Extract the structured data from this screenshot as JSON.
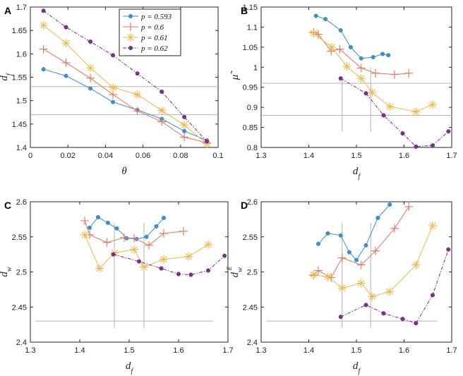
{
  "colors": {
    "p0593": "#3a8fd0",
    "p06": "#e8745a",
    "p061": "#f2b84b",
    "p062": "#7a2f8f",
    "ref": "#b4b4b4"
  },
  "legend": [
    {
      "label": "p = 0.593",
      "marker": "dot",
      "color": "#3a8fd0",
      "dash": ""
    },
    {
      "label": "p = 0.6",
      "marker": "plus",
      "color": "#e8745a",
      "dash": ""
    },
    {
      "label": "p = 0.61",
      "marker": "star",
      "color": "#f2b84b",
      "dash": ""
    },
    {
      "label": "p = 0.62",
      "marker": "dot",
      "color": "#7a2f8f",
      "dash": "5,2,1.5,2"
    }
  ],
  "chart_data": [
    {
      "id": "A",
      "panel_label": "A",
      "type": "line",
      "xlabel": "θ",
      "ylabel": "d_f",
      "xlim": [
        0,
        0.1
      ],
      "ylim": [
        1.4,
        1.7
      ],
      "xticks": [
        0,
        0.02,
        0.04,
        0.06,
        0.08,
        0.1
      ],
      "xticklabels": [
        "0",
        "0.02",
        "0.04",
        "0.06",
        "0.08",
        "0.1"
      ],
      "yticks": [
        1.4,
        1.45,
        1.5,
        1.55,
        1.6,
        1.65,
        1.7
      ],
      "yticklabels": [
        "1.4",
        "1.45",
        "1.5",
        "1.55",
        "1.6",
        "1.65",
        "1.7"
      ],
      "ref_lines": [
        {
          "type": "h",
          "value": 1.53
        },
        {
          "type": "h",
          "value": 1.47
        }
      ],
      "series": [
        {
          "name": "p = 0.593",
          "x": [
            0.007,
            0.019,
            0.032,
            0.044,
            0.057,
            0.07,
            0.082,
            0.094
          ],
          "y": [
            1.567,
            1.553,
            1.526,
            1.497,
            1.48,
            1.461,
            1.435,
            1.415
          ]
        },
        {
          "name": "p = 0.6",
          "x": [
            0.007,
            0.019,
            0.032,
            0.044,
            0.057,
            0.07,
            0.082,
            0.094
          ],
          "y": [
            1.61,
            1.581,
            1.548,
            1.513,
            1.478,
            1.455,
            1.422,
            1.41
          ]
        },
        {
          "name": "p = 0.61",
          "x": [
            0.007,
            0.019,
            0.032,
            0.044,
            0.057,
            0.07,
            0.082,
            0.094
          ],
          "y": [
            1.661,
            1.623,
            1.57,
            1.528,
            1.513,
            1.479,
            1.448,
            1.408
          ]
        },
        {
          "name": "p = 0.62",
          "x": [
            0.007,
            0.019,
            0.032,
            0.044,
            0.057,
            0.07,
            0.082,
            0.094
          ],
          "y": [
            1.692,
            1.657,
            1.626,
            1.597,
            1.558,
            1.519,
            1.465,
            1.413
          ]
        }
      ]
    },
    {
      "id": "B",
      "panel_label": "B",
      "type": "line",
      "xlabel": "d_f",
      "ylabel": "μ̃",
      "xlim": [
        1.3,
        1.7
      ],
      "ylim": [
        0.8,
        1.15
      ],
      "xticks": [
        1.3,
        1.4,
        1.5,
        1.6,
        1.7
      ],
      "xticklabels": [
        "1.3",
        "1.4",
        "1.5",
        "1.6",
        "1.7"
      ],
      "yticks": [
        0.8,
        0.85,
        0.9,
        0.95,
        1,
        1.05,
        1.1,
        1.15
      ],
      "yticklabels": [
        "0.8",
        "0.85",
        "0.9",
        "0.95",
        "1",
        "1.05",
        "1.1",
        "1.15"
      ],
      "ref_lines": [
        {
          "type": "h",
          "value": 0.96,
          "from": 1.3,
          "to": 1.7
        },
        {
          "type": "h",
          "value": 0.88,
          "from": 1.3,
          "to": 1.7
        },
        {
          "type": "v",
          "value": 1.47,
          "from": 0.84,
          "to": 0.975
        },
        {
          "type": "v",
          "value": 1.53,
          "from": 0.84,
          "to": 1.0
        }
      ],
      "series": [
        {
          "name": "p = 0.593",
          "x": [
            1.415,
            1.435,
            1.467,
            1.488,
            1.51,
            1.535,
            1.555,
            1.567
          ],
          "y": [
            1.128,
            1.12,
            1.092,
            1.05,
            1.022,
            1.025,
            1.033,
            1.03
          ]
        },
        {
          "name": "p = 0.6",
          "x": [
            1.41,
            1.42,
            1.447,
            1.465,
            1.51,
            1.54,
            1.58,
            1.61
          ],
          "y": [
            1.087,
            1.082,
            1.04,
            1.045,
            0.998,
            0.985,
            0.982,
            0.985
          ]
        },
        {
          "name": "p = 0.61",
          "x": [
            1.41,
            1.448,
            1.48,
            1.51,
            1.533,
            1.57,
            1.625,
            1.66
          ],
          "y": [
            1.085,
            1.05,
            1.002,
            0.972,
            0.937,
            0.902,
            0.889,
            0.907
          ]
        },
        {
          "name": "p = 0.62",
          "x": [
            1.467,
            1.52,
            1.557,
            1.597,
            1.625,
            1.66,
            1.693
          ],
          "y": [
            0.972,
            0.935,
            0.88,
            0.835,
            0.802,
            0.805,
            0.84
          ]
        }
      ]
    },
    {
      "id": "C",
      "panel_label": "C",
      "type": "line",
      "xlabel": "d_f",
      "ylabel": "d_w",
      "xlim": [
        1.3,
        1.7
      ],
      "ylim": [
        2.4,
        2.6
      ],
      "xticks": [
        1.3,
        1.4,
        1.5,
        1.6,
        1.7
      ],
      "xticklabels": [
        "1.3",
        "1.4",
        "1.5",
        "1.6",
        "1.7"
      ],
      "yticks": [
        2.4,
        2.45,
        2.5,
        2.55,
        2.6
      ],
      "yticklabels": [
        "2.4",
        "2.45",
        "2.5",
        "2.55",
        "2.6"
      ],
      "ref_lines": [
        {
          "type": "h",
          "value": 2.43,
          "from": 1.31,
          "to": 1.67
        },
        {
          "type": "v",
          "value": 1.47,
          "from": 2.42,
          "to": 2.57
        },
        {
          "type": "v",
          "value": 1.53,
          "from": 2.42,
          "to": 2.57
        }
      ],
      "series": [
        {
          "name": "p = 0.593",
          "x": [
            1.42,
            1.437,
            1.457,
            1.475,
            1.495,
            1.515,
            1.535,
            1.555,
            1.57
          ],
          "y": [
            2.563,
            2.578,
            2.57,
            2.562,
            2.548,
            2.547,
            2.55,
            2.565,
            2.577
          ]
        },
        {
          "name": "p = 0.6",
          "x": [
            1.41,
            1.42,
            1.455,
            1.49,
            1.51,
            1.54,
            1.57,
            1.61
          ],
          "y": [
            2.573,
            2.553,
            2.542,
            2.549,
            2.548,
            2.538,
            2.555,
            2.558
          ]
        },
        {
          "name": "p = 0.61",
          "x": [
            1.41,
            1.44,
            1.47,
            1.51,
            1.53,
            1.57,
            1.62,
            1.66
          ],
          "y": [
            2.553,
            2.505,
            2.527,
            2.532,
            2.507,
            2.518,
            2.522,
            2.539
          ]
        },
        {
          "name": "p = 0.62",
          "x": [
            1.468,
            1.52,
            1.565,
            1.6,
            1.625,
            1.66,
            1.693
          ],
          "y": [
            2.525,
            2.515,
            2.505,
            2.497,
            2.496,
            2.502,
            2.523
          ]
        }
      ]
    },
    {
      "id": "D",
      "panel_label": "D",
      "type": "line",
      "xlabel": "d_f",
      "ylabel": "d_w^E",
      "xlim": [
        1.3,
        1.7
      ],
      "ylim": [
        2.4,
        2.6
      ],
      "xticks": [
        1.3,
        1.4,
        1.5,
        1.6,
        1.7
      ],
      "xticklabels": [
        "1.3",
        "1.4",
        "1.5",
        "1.6",
        "1.7"
      ],
      "yticks": [
        2.4,
        2.45,
        2.5,
        2.55,
        2.6
      ],
      "yticklabels": [
        "2.4",
        "2.45",
        "2.5",
        "2.55",
        "2.6"
      ],
      "ref_lines": [
        {
          "type": "h",
          "value": 2.43,
          "from": 1.31,
          "to": 1.67
        },
        {
          "type": "v",
          "value": 1.47,
          "from": 2.42,
          "to": 2.57
        },
        {
          "type": "v",
          "value": 1.53,
          "from": 2.42,
          "to": 2.57
        }
      ],
      "series": [
        {
          "name": "p = 0.593",
          "x": [
            1.42,
            1.44,
            1.467,
            1.485,
            1.5,
            1.52,
            1.545,
            1.57
          ],
          "y": [
            2.54,
            2.555,
            2.552,
            2.528,
            2.517,
            2.538,
            2.577,
            2.596
          ]
        },
        {
          "name": "p = 0.6",
          "x": [
            1.41,
            1.42,
            1.447,
            1.47,
            1.51,
            1.54,
            1.58,
            1.61
          ],
          "y": [
            2.495,
            2.502,
            2.492,
            2.52,
            2.51,
            2.53,
            2.562,
            2.593
          ]
        },
        {
          "name": "p = 0.61",
          "x": [
            1.41,
            1.44,
            1.47,
            1.51,
            1.533,
            1.57,
            1.625,
            1.66
          ],
          "y": [
            2.496,
            2.493,
            2.477,
            2.484,
            2.465,
            2.472,
            2.51,
            2.566
          ]
        },
        {
          "name": "p = 0.62",
          "x": [
            1.467,
            1.52,
            1.557,
            1.597,
            1.625,
            1.66,
            1.693
          ],
          "y": [
            2.436,
            2.453,
            2.441,
            2.433,
            2.427,
            2.467,
            2.532
          ]
        }
      ]
    }
  ]
}
